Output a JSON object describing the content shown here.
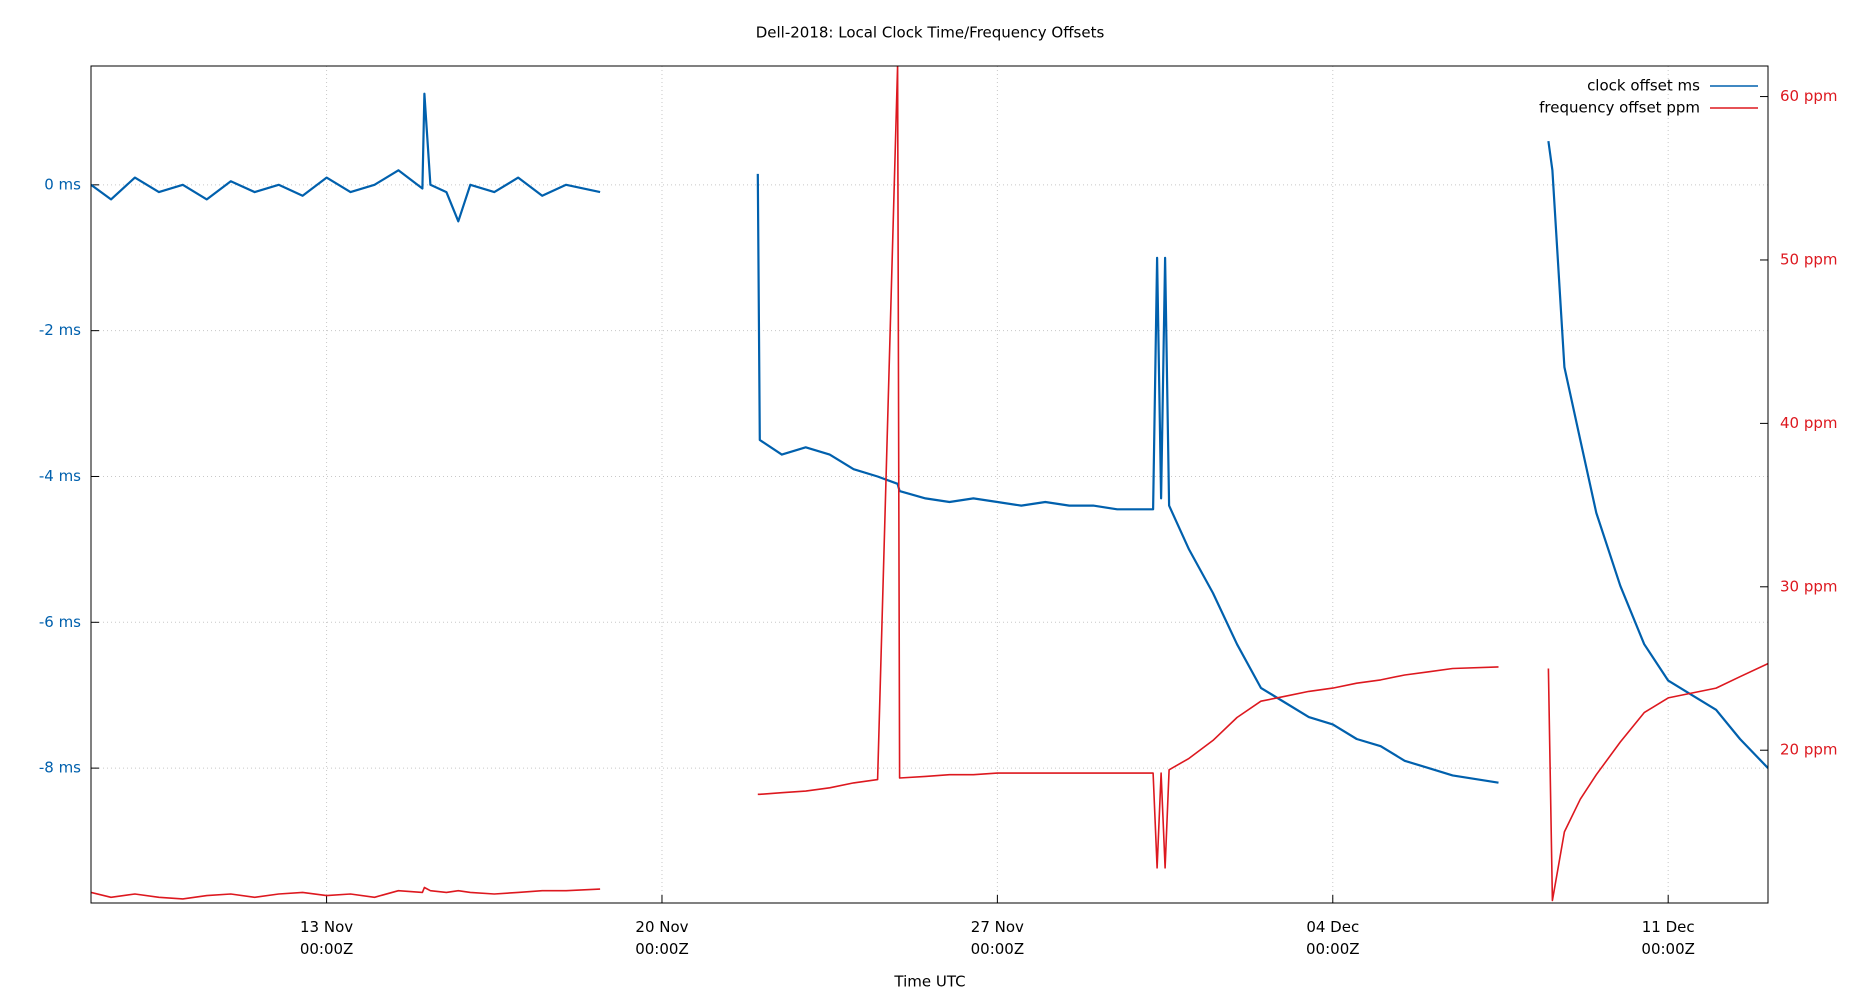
{
  "chart_data": {
    "type": "line",
    "title": "Dell-2018: Local Clock Time/Frequency Offsets",
    "x_label": "Time UTC",
    "legend": "top-right",
    "grid": true,
    "xlim": [
      "11-08 02:00",
      "12-13 02:00"
    ],
    "xticks": [
      {
        "value": "11-13 00:00",
        "label": "13 Nov\n00:00Z"
      },
      {
        "value": "11-20 00:00",
        "label": "20 Nov\n00:00Z"
      },
      {
        "value": "11-27 00:00",
        "label": "27 Nov\n00:00Z"
      },
      {
        "value": "12-04 00:00",
        "label": "04 Dec\n00:00Z"
      },
      {
        "value": "12-11 00:00",
        "label": "11 Dec\n00:00Z"
      }
    ],
    "ylim": [
      -9.85,
      1.63
    ],
    "yticks": [
      {
        "value": 0,
        "label": "0 ms"
      },
      {
        "value": -2,
        "label": "-2 ms"
      },
      {
        "value": -4,
        "label": "-4 ms"
      },
      {
        "value": -6,
        "label": "-6 ms"
      },
      {
        "value": -8,
        "label": "-8 ms"
      }
    ],
    "y2lim": [
      10.65,
      61.87
    ],
    "y2ticks": [
      {
        "value": 20,
        "label": "20 ppm"
      },
      {
        "value": 30,
        "label": "30 ppm"
      },
      {
        "value": 40,
        "label": "40 ppm"
      },
      {
        "value": 50,
        "label": "50 ppm"
      },
      {
        "value": 60,
        "label": "60 ppm"
      }
    ],
    "x": [
      "11-08 02:00",
      "11-08 12:00",
      "11-09 00:00",
      "11-09 12:00",
      "11-10 00:00",
      "11-10 12:00",
      "11-11 00:00",
      "11-11 12:00",
      "11-12 00:00",
      "11-12 12:00",
      "11-13 00:00",
      "11-13 12:00",
      "11-14 00:00",
      "11-14 12:00",
      "11-15 00:00",
      "11-15 01:00",
      "11-15 04:00",
      "11-15 12:00",
      "11-15 18:00",
      "11-16 00:00",
      "11-16 12:00",
      "11-17 00:00",
      "11-17 12:00",
      "11-18 00:00",
      "11-18 17:00",
      "11-20 00:00",
      "11-22 00:00",
      "11-22 01:00",
      "11-22 12:00",
      "11-23 00:00",
      "11-23 12:00",
      "11-24 00:00",
      "11-24 12:00",
      "11-24 22:00",
      "11-24 23:00",
      "11-25 12:00",
      "11-26 00:00",
      "11-26 12:00",
      "11-27 00:00",
      "11-27 12:00",
      "11-28 00:00",
      "11-28 12:00",
      "11-29 00:00",
      "11-29 12:00",
      "11-30 06:00",
      "11-30 08:00",
      "11-30 10:00",
      "11-30 12:00",
      "11-30 14:00",
      "12-01 00:00",
      "12-01 12:00",
      "12-02 00:00",
      "12-02 12:00",
      "12-03 00:00",
      "12-03 12:00",
      "12-04 00:00",
      "12-04 12:00",
      "12-05 00:00",
      "12-05 12:00",
      "12-06 00:00",
      "12-06 12:00",
      "12-07 11:00",
      "12-08 00:00",
      "12-08 12:00",
      "12-08 14:00",
      "12-08 20:00",
      "12-09 04:00",
      "12-09 12:00",
      "12-10 00:00",
      "12-10 12:00",
      "12-11 00:00",
      "12-11 12:00",
      "12-12 00:00",
      "12-12 12:00",
      "12-13 02:00"
    ],
    "series": [
      {
        "name": "clock offset ms",
        "color": "#0060ad",
        "axis": "y",
        "values": [
          0.0,
          -0.2,
          0.1,
          -0.1,
          0.0,
          -0.2,
          0.05,
          -0.1,
          0.0,
          -0.15,
          0.1,
          -0.1,
          0.0,
          0.2,
          -0.05,
          1.25,
          0.0,
          -0.1,
          -0.5,
          0.0,
          -0.1,
          0.1,
          -0.15,
          0.0,
          -0.1,
          null,
          0.15,
          -3.5,
          -3.7,
          -3.6,
          -3.7,
          -3.9,
          -4.0,
          -4.1,
          -4.2,
          -4.3,
          -4.35,
          -4.3,
          -4.35,
          -4.4,
          -4.35,
          -4.4,
          -4.4,
          -4.45,
          -4.45,
          -1.0,
          -4.3,
          -1.0,
          -4.4,
          -5.0,
          -5.6,
          -6.3,
          -6.9,
          -7.1,
          -7.3,
          -7.4,
          -7.6,
          -7.7,
          -7.9,
          -8.0,
          -8.1,
          -8.2,
          null,
          0.6,
          0.2,
          -2.5,
          -3.5,
          -4.5,
          -5.5,
          -6.3,
          -6.8,
          -7.0,
          -7.2,
          -7.6,
          -8.0
        ]
      },
      {
        "name": "frequency offset ppm",
        "color": "#dd181f",
        "axis": "y2",
        "values": [
          11.3,
          11.0,
          11.2,
          11.0,
          10.9,
          11.1,
          11.2,
          11.0,
          11.2,
          11.3,
          11.1,
          11.2,
          11.0,
          11.4,
          11.3,
          11.6,
          11.4,
          11.3,
          11.4,
          11.3,
          11.2,
          11.3,
          11.4,
          11.4,
          11.5,
          null,
          17.3,
          17.3,
          17.4,
          17.5,
          17.7,
          18.0,
          18.2,
          61.9,
          18.3,
          18.4,
          18.5,
          18.5,
          18.6,
          18.6,
          18.6,
          18.6,
          18.6,
          18.6,
          18.6,
          12.8,
          18.6,
          12.8,
          18.8,
          19.5,
          20.6,
          22.0,
          23.0,
          23.3,
          23.6,
          23.8,
          24.1,
          24.3,
          24.6,
          24.8,
          25.0,
          25.1,
          null,
          25.0,
          10.8,
          15.0,
          17.0,
          18.5,
          20.5,
          22.3,
          23.2,
          23.5,
          23.8,
          24.5,
          25.3
        ]
      }
    ]
  }
}
